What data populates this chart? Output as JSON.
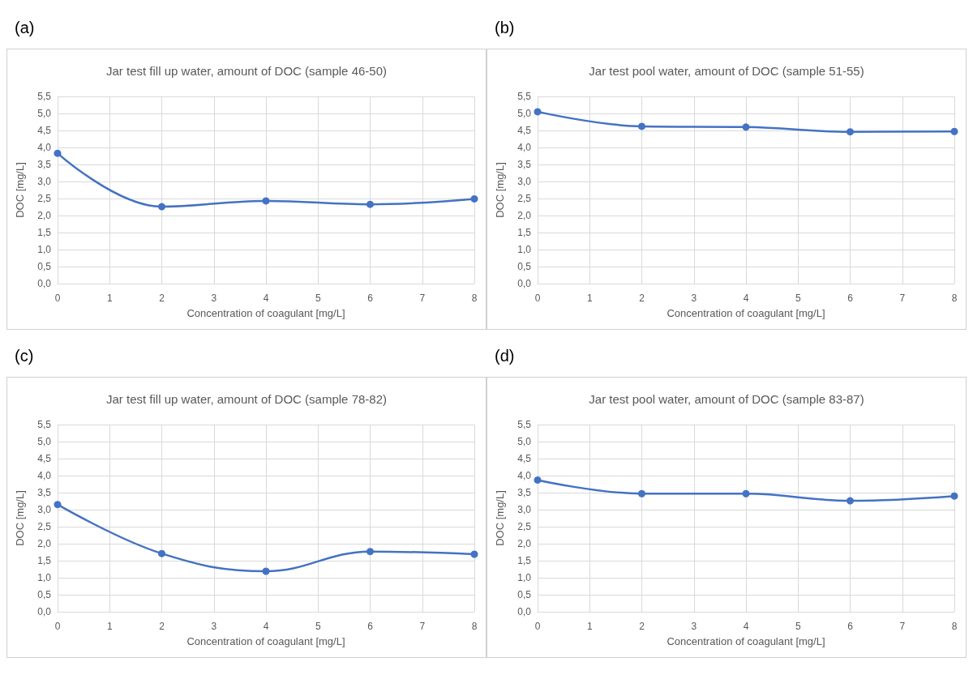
{
  "chart_data": [
    {
      "type": "line",
      "annotations": [
        "(a)"
      ],
      "title": "Jar test fill up water, amount of DOC (sample 46-50)",
      "xlabel": "Concentration of coagulant [mg/L]",
      "ylabel": "DOC [mg/L]",
      "x": [
        0,
        2,
        4,
        6,
        8
      ],
      "series": [
        {
          "color": "#4472c4",
          "values": [
            3.83,
            2.26,
            2.43,
            2.33,
            2.49
          ]
        }
      ],
      "xlim": [
        0,
        8
      ],
      "xticks": [
        0,
        1,
        2,
        3,
        4,
        5,
        6,
        7,
        8
      ],
      "ylim": [
        0,
        5.5
      ],
      "yticks": [
        {
          "value": 0,
          "label": "0,0"
        },
        {
          "value": 0.5,
          "label": "0,5"
        },
        {
          "value": 1,
          "label": "1,0"
        },
        {
          "value": 1.5,
          "label": "1,5"
        },
        {
          "value": 2,
          "label": "2,0"
        },
        {
          "value": 2.5,
          "label": "2,5"
        },
        {
          "value": 3,
          "label": "3,0"
        },
        {
          "value": 3.5,
          "label": "3,5"
        },
        {
          "value": 4,
          "label": "4,0"
        },
        {
          "value": 4.5,
          "label": "4,5"
        },
        {
          "value": 5,
          "label": "5,0"
        },
        {
          "value": 5.5,
          "label": "5,5"
        }
      ],
      "grid": true,
      "marker": "circle",
      "line_style": "solid"
    },
    {
      "type": "line",
      "annotations": [
        "(b)"
      ],
      "title": "Jar test pool water, amount of DOC (sample 51-55)",
      "xlabel": "Concentration of coagulant [mg/L]",
      "ylabel": "DOC [mg/L]",
      "x": [
        0,
        2,
        4,
        6,
        8
      ],
      "series": [
        {
          "color": "#4472c4",
          "values": [
            5.05,
            4.62,
            4.6,
            4.46,
            4.47
          ]
        }
      ],
      "xlim": [
        0,
        8
      ],
      "xticks": [
        0,
        1,
        2,
        3,
        4,
        5,
        6,
        7,
        8
      ],
      "ylim": [
        0,
        5.5
      ],
      "yticks": [
        {
          "value": 0,
          "label": "0,0"
        },
        {
          "value": 0.5,
          "label": "0,5"
        },
        {
          "value": 1,
          "label": "1,0"
        },
        {
          "value": 1.5,
          "label": "1,5"
        },
        {
          "value": 2,
          "label": "2,0"
        },
        {
          "value": 2.5,
          "label": "2,5"
        },
        {
          "value": 3,
          "label": "3,0"
        },
        {
          "value": 3.5,
          "label": "3,5"
        },
        {
          "value": 4,
          "label": "4,0"
        },
        {
          "value": 4.5,
          "label": "4,5"
        },
        {
          "value": 5,
          "label": "5,0"
        },
        {
          "value": 5.5,
          "label": "5,5"
        }
      ],
      "grid": true,
      "marker": "circle",
      "line_style": "solid"
    },
    {
      "type": "line",
      "annotations": [
        "(c)"
      ],
      "title": "Jar test fill up water, amount of DOC (sample 78-82)",
      "xlabel": "Concentration of coagulant [mg/L]",
      "ylabel": "DOC [mg/L]",
      "x": [
        0,
        2,
        4,
        6,
        8
      ],
      "series": [
        {
          "color": "#4472c4",
          "values": [
            3.15,
            1.71,
            1.19,
            1.77,
            1.69
          ]
        }
      ],
      "xlim": [
        0,
        8
      ],
      "xticks": [
        0,
        1,
        2,
        3,
        4,
        5,
        6,
        7,
        8
      ],
      "ylim": [
        0,
        5.5
      ],
      "yticks": [
        {
          "value": 0,
          "label": "0,0"
        },
        {
          "value": 0.5,
          "label": "0,5"
        },
        {
          "value": 1,
          "label": "1,0"
        },
        {
          "value": 1.5,
          "label": "1,5"
        },
        {
          "value": 2,
          "label": "2,0"
        },
        {
          "value": 2.5,
          "label": "2,5"
        },
        {
          "value": 3,
          "label": "3,0"
        },
        {
          "value": 3.5,
          "label": "3,5"
        },
        {
          "value": 4,
          "label": "4,0"
        },
        {
          "value": 4.5,
          "label": "4,5"
        },
        {
          "value": 5,
          "label": "5,0"
        },
        {
          "value": 5.5,
          "label": "5,5"
        }
      ],
      "grid": true,
      "marker": "circle",
      "line_style": "solid"
    },
    {
      "type": "line",
      "annotations": [
        "(d)"
      ],
      "title": "Jar test pool water, amount of DOC (sample 83-87)",
      "xlabel": "Concentration of coagulant [mg/L]",
      "ylabel": "DOC [mg/L]",
      "x": [
        0,
        2,
        4,
        6,
        8
      ],
      "series": [
        {
          "color": "#4472c4",
          "values": [
            3.87,
            3.47,
            3.47,
            3.26,
            3.4
          ]
        }
      ],
      "xlim": [
        0,
        8
      ],
      "xticks": [
        0,
        1,
        2,
        3,
        4,
        5,
        6,
        7,
        8
      ],
      "ylim": [
        0,
        5.5
      ],
      "yticks": [
        {
          "value": 0,
          "label": "0,0"
        },
        {
          "value": 0.5,
          "label": "0,5"
        },
        {
          "value": 1,
          "label": "1,0"
        },
        {
          "value": 1.5,
          "label": "1,5"
        },
        {
          "value": 2,
          "label": "2,0"
        },
        {
          "value": 2.5,
          "label": "2,5"
        },
        {
          "value": 3,
          "label": "3,0"
        },
        {
          "value": 3.5,
          "label": "3,5"
        },
        {
          "value": 4,
          "label": "4,0"
        },
        {
          "value": 4.5,
          "label": "4,5"
        },
        {
          "value": 5,
          "label": "5,0"
        },
        {
          "value": 5.5,
          "label": "5,5"
        }
      ],
      "grid": true,
      "marker": "circle",
      "line_style": "solid"
    }
  ]
}
